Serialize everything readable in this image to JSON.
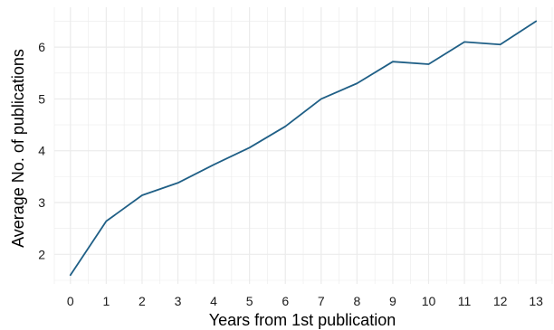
{
  "chart_data": {
    "type": "line",
    "title": "",
    "xlabel": "Years from 1st publication",
    "ylabel": "Average No. of publications",
    "x": [
      0,
      1,
      2,
      3,
      4,
      5,
      6,
      7,
      8,
      9,
      10,
      11,
      12,
      13
    ],
    "series": [
      {
        "values": [
          1.6,
          2.64,
          3.14,
          3.38,
          3.73,
          4.06,
          4.47,
          5.0,
          5.3,
          5.72,
          5.67,
          6.1,
          6.05,
          6.5
        ],
        "color": "#1f5f86"
      }
    ],
    "xticks": [
      "0",
      "1",
      "2",
      "3",
      "4",
      "5",
      "6",
      "7",
      "8",
      "9",
      "10",
      "11",
      "12",
      "13"
    ],
    "yticks": [
      "2",
      "3",
      "4",
      "5",
      "6"
    ],
    "xlim": [
      -0.45,
      13.45
    ],
    "ylim": [
      1.43,
      6.77
    ],
    "grid": true,
    "grid_color": "#ebebeb",
    "background": "#ffffff",
    "legend": "none"
  }
}
